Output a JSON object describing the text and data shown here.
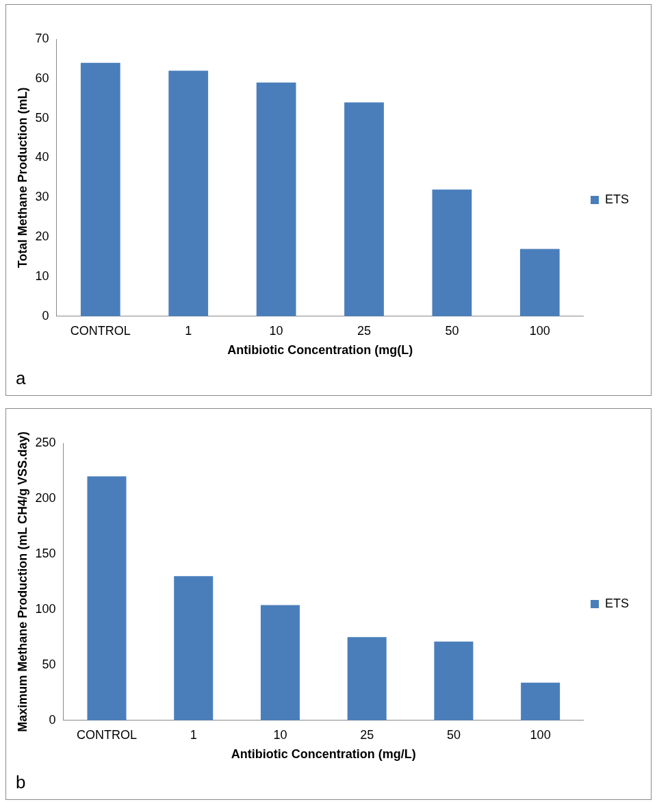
{
  "chart_data": [
    {
      "type": "bar",
      "xlabel": "Antibiotic Concentration (mg(L)",
      "ylabel": "Total Methane Production (mL)",
      "categories": [
        "CONTROL",
        "1",
        "10",
        "25",
        "50",
        "100"
      ],
      "series": [
        {
          "name": "ETS",
          "color": "#4a7ebb",
          "values": [
            64,
            62,
            59,
            54,
            32,
            17
          ]
        }
      ],
      "ylim": [
        0,
        70
      ],
      "yticks": [
        0,
        10,
        20,
        30,
        40,
        50,
        60,
        70
      ],
      "grid": false,
      "legend": "right",
      "annotations": [
        "a"
      ]
    },
    {
      "type": "bar",
      "xlabel": "Antibiotic Concentration (mg/L)",
      "ylabel": "Maximum Methane Production (mL CH4/g VSS.day)",
      "categories": [
        "CONTROL",
        "1",
        "10",
        "25",
        "50",
        "100"
      ],
      "series": [
        {
          "name": "ETS",
          "color": "#4a7ebb",
          "values": [
            220,
            130,
            104,
            75,
            71,
            34
          ]
        }
      ],
      "ylim": [
        0,
        250
      ],
      "yticks": [
        0,
        50,
        100,
        150,
        200,
        250
      ],
      "grid": false,
      "legend": "right",
      "annotations": [
        "b"
      ]
    }
  ]
}
